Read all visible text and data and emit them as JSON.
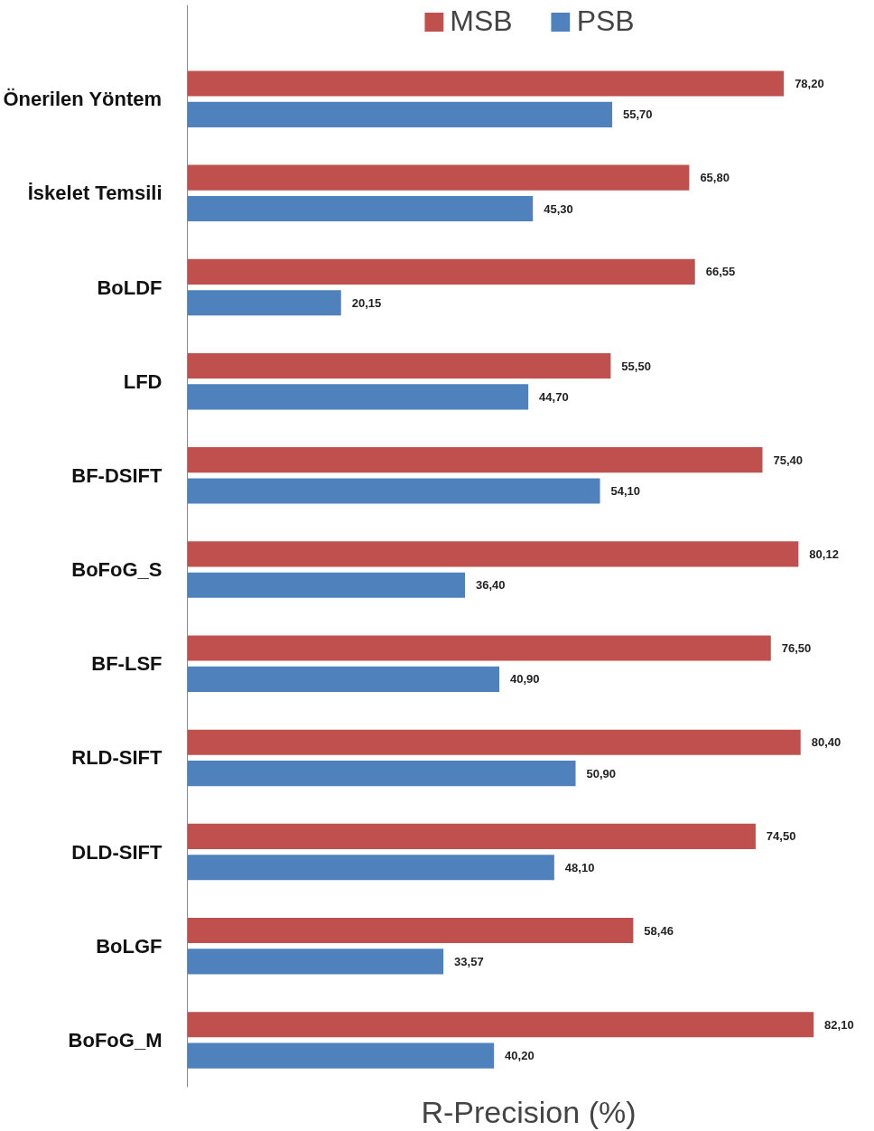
{
  "chart_data": {
    "type": "bar",
    "orientation": "horizontal",
    "xlabel": "R-Precision (%)",
    "categories": [
      "Önerilen Yöntem",
      "İskelet Temsili",
      "BoLDF",
      "LFD",
      "BF-DSIFT",
      "BoFoG_S",
      "BF-LSF",
      "RLD-SIFT",
      "DLD-SIFT",
      "BoLGF",
      "BoFoG_M"
    ],
    "series": [
      {
        "name": "MSB",
        "color": "#c0504d",
        "values": [
          78.2,
          65.8,
          66.55,
          55.5,
          75.4,
          80.12,
          76.5,
          80.4,
          74.5,
          58.46,
          82.1
        ],
        "value_labels": [
          "78,20",
          "65,80",
          "66,55",
          "55,50",
          "75,40",
          "80,12",
          "76,50",
          "80,40",
          "74,50",
          "58,46",
          "82,10"
        ]
      },
      {
        "name": "PSB",
        "color": "#4f81bd",
        "values": [
          55.7,
          45.3,
          20.15,
          44.7,
          54.1,
          36.4,
          40.9,
          50.9,
          48.1,
          33.57,
          40.2
        ],
        "value_labels": [
          "55,70",
          "45,30",
          "20,15",
          "44,70",
          "54,10",
          "36,40",
          "40,90",
          "50,90",
          "48,10",
          "33,57",
          "40,20"
        ]
      }
    ],
    "legend": "top",
    "grid": false,
    "tick_labels": "y"
  }
}
